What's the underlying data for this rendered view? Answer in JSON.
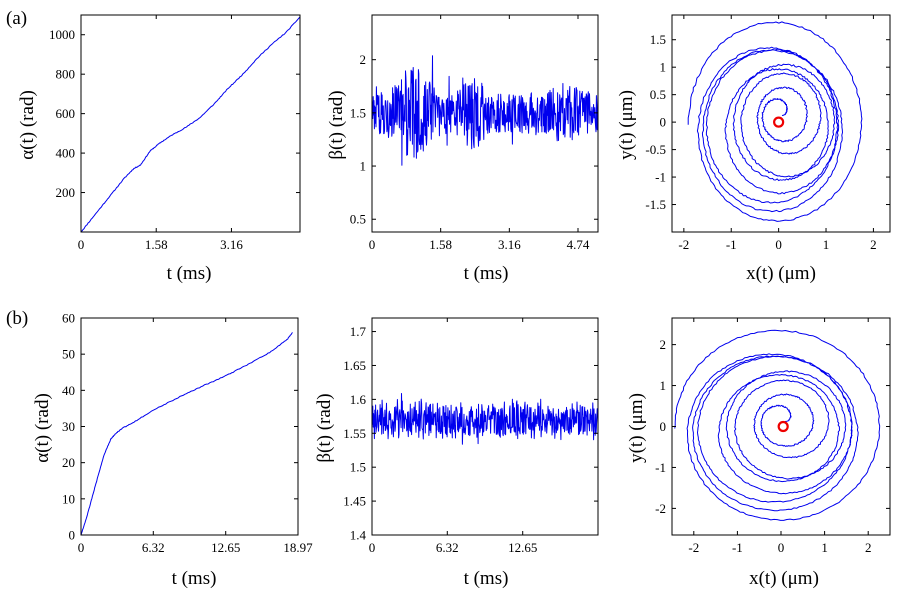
{
  "panel_labels": [
    "(a)",
    "(b)"
  ],
  "colors": {
    "trace": "#0000ee",
    "marker": "#ee0000",
    "axes": "#000000"
  },
  "chart_data": [
    {
      "id": "a1",
      "type": "line",
      "row": "a",
      "ylabel": "α(t)  (rad)",
      "xlabel": "t (ms)",
      "xlim": [
        0,
        4.6
      ],
      "ylim": [
        0,
        1100
      ],
      "xticks": [
        0,
        1.58,
        3.16
      ],
      "xtick_labels": [
        "0",
        "1.58",
        "3.16"
      ],
      "yticks": [
        200,
        400,
        600,
        800,
        1000
      ],
      "ytick_labels": [
        "200",
        "400",
        "600",
        "800",
        "1000"
      ],
      "x": [
        0,
        0.3,
        0.6,
        0.9,
        1.1,
        1.25,
        1.45,
        1.65,
        1.9,
        2.2,
        2.5,
        2.8,
        3.1,
        3.4,
        3.7,
        4.0,
        4.3,
        4.6
      ],
      "y": [
        0,
        90,
        180,
        270,
        320,
        340,
        410,
        450,
        490,
        530,
        580,
        650,
        730,
        800,
        880,
        950,
        1010,
        1090
      ]
    },
    {
      "id": "a2",
      "type": "line",
      "row": "a",
      "ylabel": "β(t)  (rad)",
      "xlabel": "t (ms)",
      "xlim": [
        0,
        5.2
      ],
      "ylim": [
        0.38,
        2.42
      ],
      "xticks": [
        0,
        1.58,
        3.16,
        4.74
      ],
      "xtick_labels": [
        "0",
        "1.58",
        "3.16",
        "4.74"
      ],
      "yticks": [
        0.5,
        1,
        1.5,
        2
      ],
      "ytick_labels": [
        "0.5",
        "1",
        "1.5",
        "2"
      ],
      "center": 1.5,
      "samples": 560
    },
    {
      "id": "a3",
      "type": "scatter",
      "row": "a",
      "ylabel": "y(t)  (μm)",
      "xlabel": "x(t)  (μm)",
      "xlim": [
        -2.25,
        2.35
      ],
      "ylim": [
        -2.0,
        1.95
      ],
      "xticks": [
        -2,
        -1,
        0,
        1,
        2
      ],
      "xtick_labels": [
        "-2",
        "-1",
        "0",
        "1",
        "2"
      ],
      "yticks": [
        -1.5,
        -1,
        -0.5,
        0,
        0.5,
        1,
        1.5
      ],
      "ytick_labels": [
        "-1.5",
        "-1",
        "-0.5",
        "0",
        "0.5",
        "1",
        "1.5"
      ],
      "marker": [
        0,
        0
      ]
    },
    {
      "id": "b1",
      "type": "line",
      "row": "b",
      "ylabel": "α(t)  (rad)",
      "xlabel": "t (ms)",
      "xlim": [
        0,
        18.97
      ],
      "ylim": [
        0,
        60
      ],
      "xticks": [
        0,
        6.32,
        12.65,
        18.97
      ],
      "xtick_labels": [
        "0",
        "6.32",
        "12.65",
        "18.97"
      ],
      "yticks": [
        0,
        10,
        20,
        30,
        40,
        50,
        60
      ],
      "ytick_labels": [
        "0",
        "10",
        "20",
        "30",
        "40",
        "50",
        "60"
      ],
      "x": [
        0,
        0.5,
        1.2,
        2.0,
        2.6,
        3.0,
        3.6,
        4.5,
        6.32,
        8.5,
        10.5,
        12.65,
        14.5,
        16.5,
        18.0,
        18.5
      ],
      "y": [
        0,
        5,
        13,
        22,
        26.5,
        28,
        29.5,
        31,
        34.5,
        38,
        41,
        44,
        47,
        50.5,
        54,
        56
      ]
    },
    {
      "id": "b2",
      "type": "line",
      "row": "b",
      "ylabel": "β(t)  (rad)",
      "xlabel": "t (ms)",
      "xlim": [
        0,
        18.97
      ],
      "ylim": [
        1.4,
        1.72
      ],
      "xticks": [
        0,
        6.32,
        12.65
      ],
      "xtick_labels": [
        "0",
        "6.32",
        "12.65"
      ],
      "yticks": [
        1.4,
        1.45,
        1.5,
        1.55,
        1.6,
        1.65,
        1.7
      ],
      "ytick_labels": [
        "1.4",
        "1.45",
        "1.5",
        "1.55",
        "1.6",
        "1.65",
        "1.7"
      ],
      "center": 1.57,
      "samples": 560
    },
    {
      "id": "b3",
      "type": "scatter",
      "row": "b",
      "ylabel": "y(t)  (μm)",
      "xlabel": "x(t)  (μm)",
      "xlim": [
        -2.5,
        2.5
      ],
      "ylim": [
        -2.65,
        2.65
      ],
      "xticks": [
        -2,
        -1,
        0,
        1,
        2
      ],
      "xtick_labels": [
        "-2",
        "-1",
        "0",
        "1",
        "2"
      ],
      "yticks": [
        -2,
        -1,
        0,
        1,
        2
      ],
      "ytick_labels": [
        "-2",
        "-1",
        "0",
        "1",
        "2"
      ],
      "marker": [
        0.05,
        0
      ]
    }
  ]
}
